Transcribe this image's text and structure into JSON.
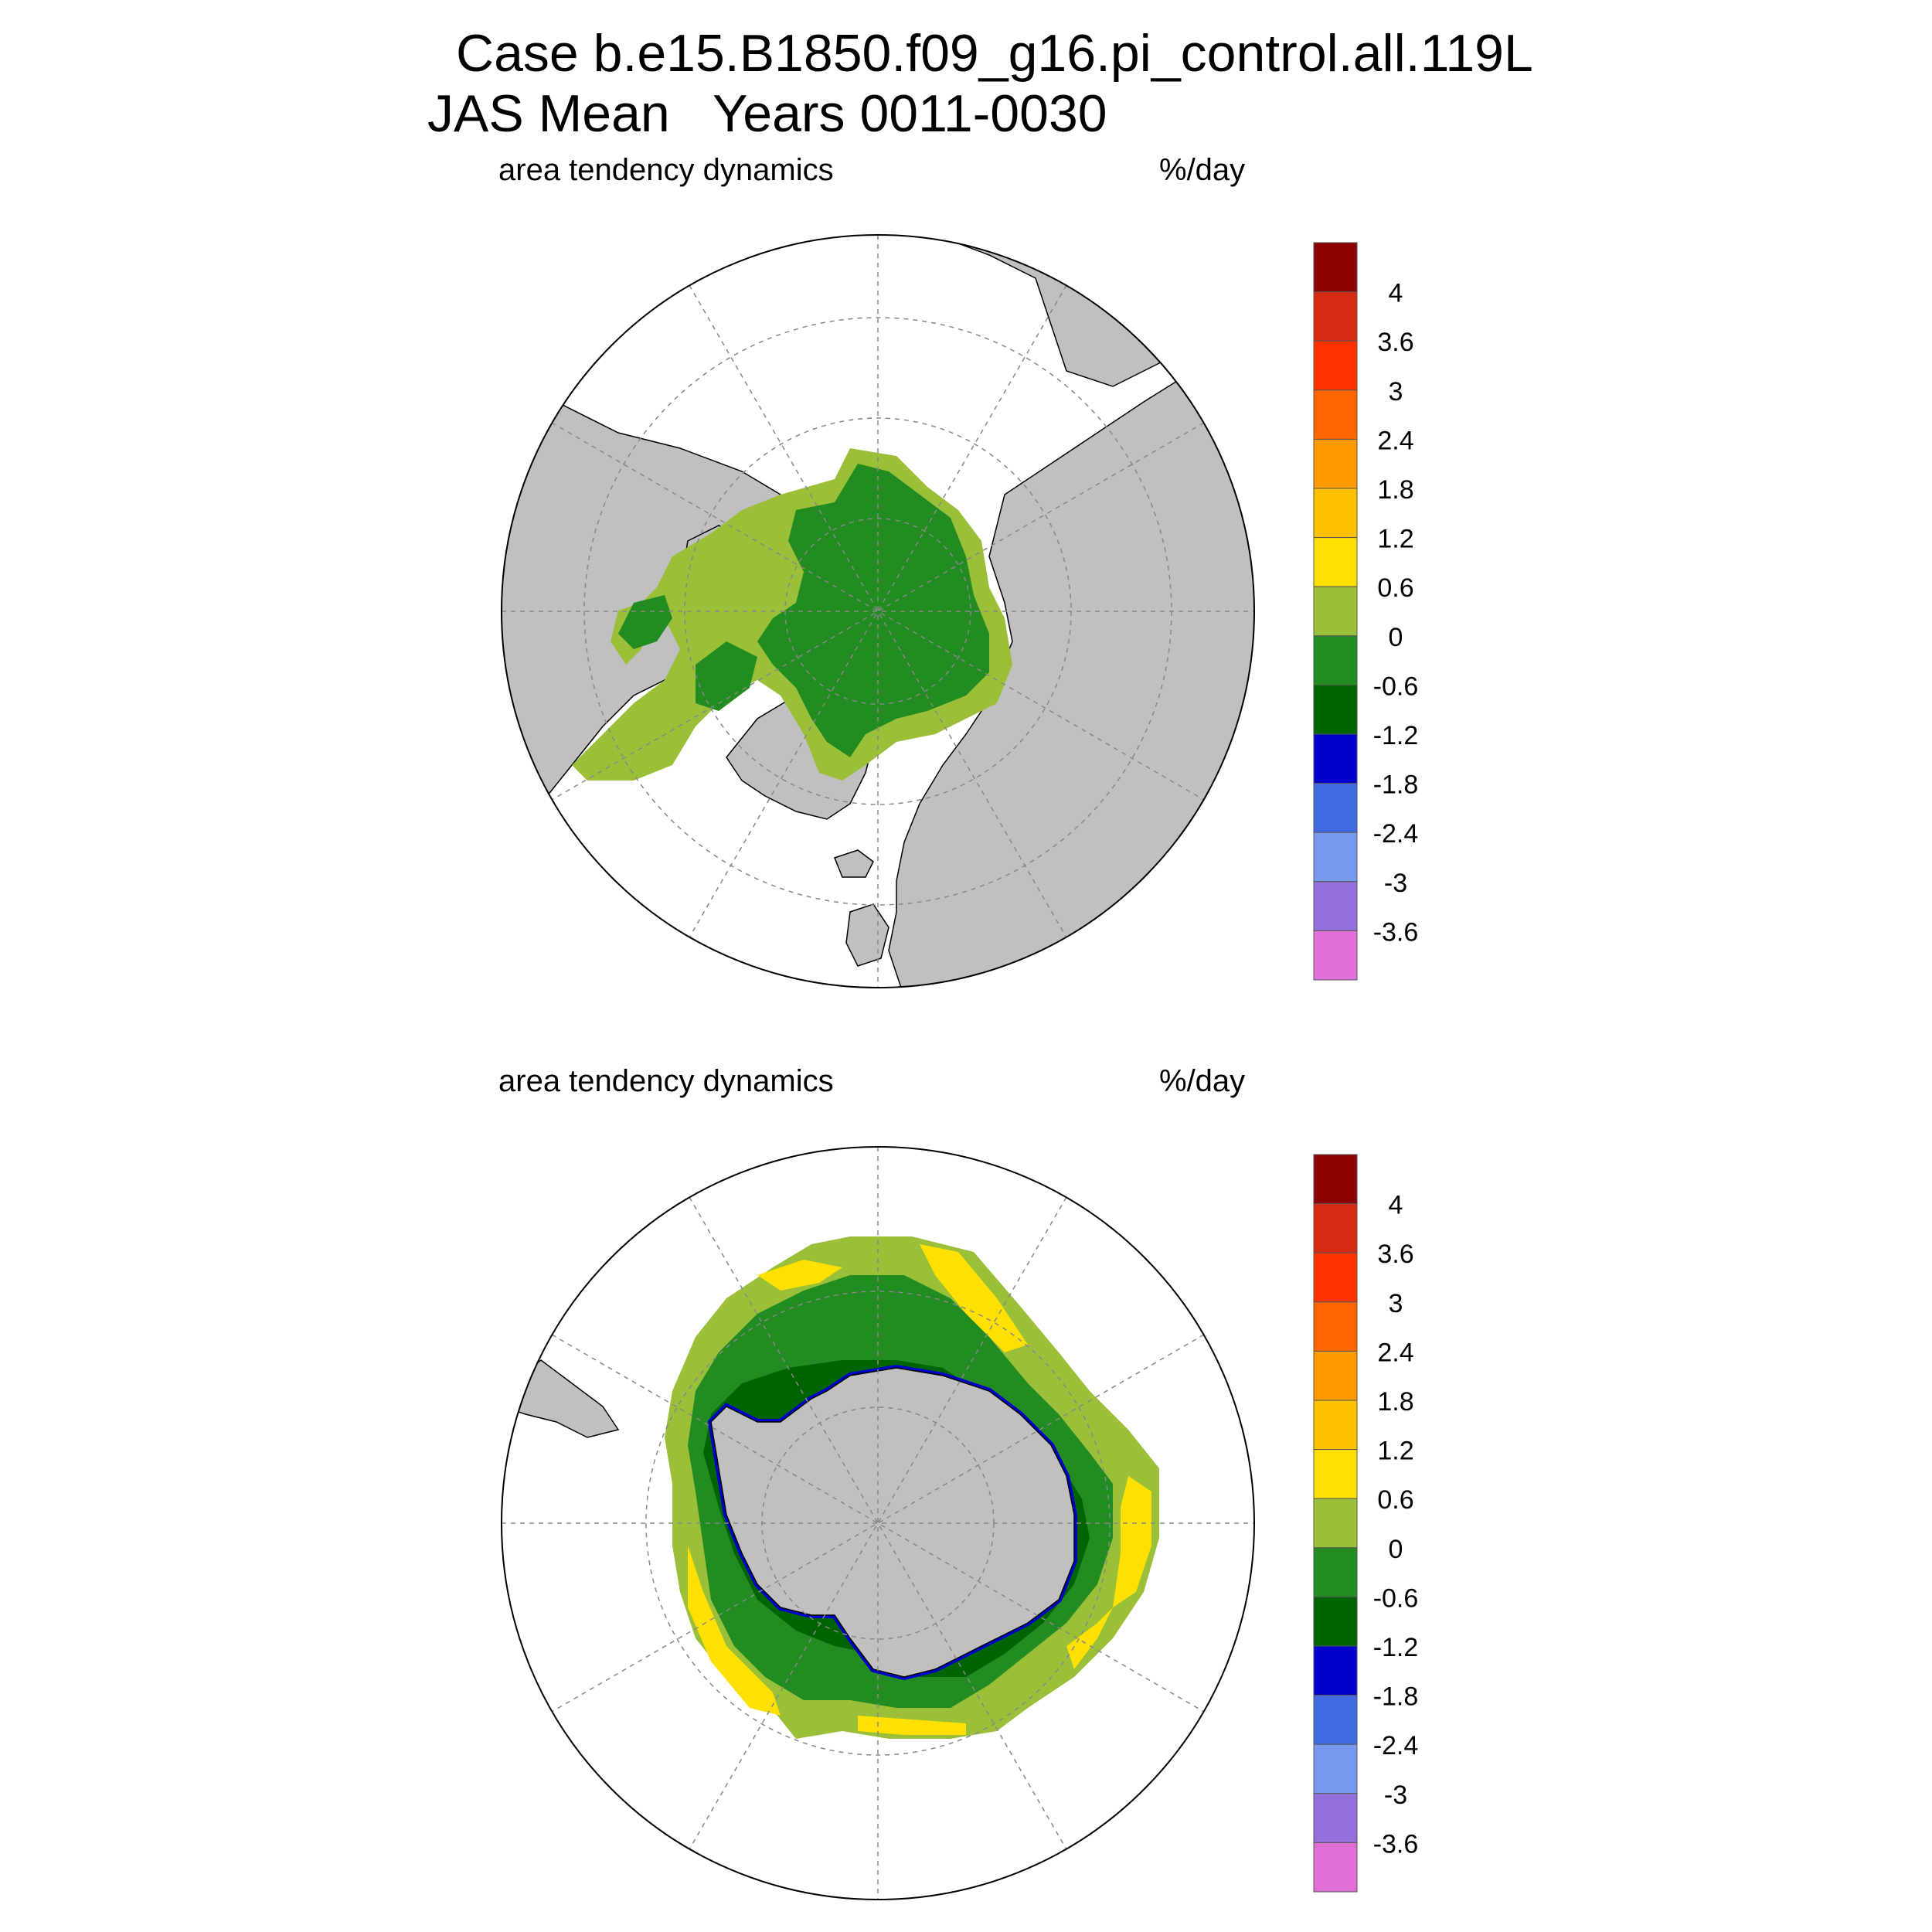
{
  "header": {
    "line1": "Case b.e15.B1850.f09_g16.pi_control.all.119L",
    "line2": "JAS Mean   Years 0011-0030"
  },
  "panels": [
    {
      "id": "north",
      "hemisphere": "Northern",
      "left_label": "area tendency dynamics",
      "right_label": "%/day"
    },
    {
      "id": "south",
      "hemisphere": "Southern",
      "left_label": "area tendency dynamics",
      "right_label": "%/day"
    }
  ],
  "legend": {
    "labels": [
      "4",
      "3.6",
      "3",
      "2.4",
      "1.8",
      "1.2",
      "0.6",
      "0",
      "-0.6",
      "-1.2",
      "-1.8",
      "-2.4",
      "-3",
      "-3.6"
    ],
    "colors": [
      "#8b0000",
      "#d62a12",
      "#ff3300",
      "#ff6600",
      "#ff9900",
      "#ffc000",
      "#ffe000",
      "#99c038",
      "#228b22",
      "#006400",
      "#0000cd",
      "#4169e1",
      "#7799ee",
      "#9370db",
      "#e070d8"
    ]
  },
  "colors": {
    "land": "#c0c0c0",
    "ocean": "#ffffff",
    "grid": "#888888"
  }
}
